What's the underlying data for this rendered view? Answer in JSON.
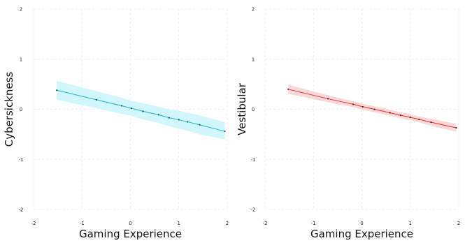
{
  "chart_data": [
    {
      "type": "line",
      "xlabel": "Gaming Experience",
      "ylabel": "Cybersickness",
      "xlim": [
        -2,
        2
      ],
      "ylim": [
        -2,
        2
      ],
      "xticks": [
        "-2",
        "-1",
        "0",
        "1",
        "2"
      ],
      "yticks": [
        "2",
        "1",
        "0",
        "-1",
        "-2"
      ],
      "grid": true,
      "line_color": "#1ab3c8",
      "band_color": "#c9f4fb",
      "point_color": "#1e4f56",
      "series": [
        {
          "x": [
            -1.52,
            -0.7,
            -0.18,
            0.02,
            0.26,
            0.58,
            0.8,
            1.0,
            1.18,
            1.43,
            1.95
          ],
          "y": [
            0.38,
            0.19,
            0.07,
            0.02,
            -0.04,
            -0.11,
            -0.17,
            -0.21,
            -0.25,
            -0.31,
            -0.44
          ],
          "band_upper": [
            0.57,
            0.36,
            0.23,
            0.17,
            0.12,
            0.05,
            0.0,
            -0.03,
            -0.07,
            -0.12,
            -0.26
          ],
          "band_lower": [
            0.19,
            0.02,
            -0.09,
            -0.13,
            -0.2,
            -0.27,
            -0.34,
            -0.39,
            -0.43,
            -0.5,
            -0.6
          ]
        }
      ]
    },
    {
      "type": "line",
      "xlabel": "Gaming Experience",
      "ylabel": "Vestibular",
      "xlim": [
        -2,
        2
      ],
      "ylim": [
        -2,
        2
      ],
      "xticks": [
        "-2",
        "-1",
        "0",
        "1",
        "2"
      ],
      "yticks": [
        "2",
        "1",
        "0",
        "-1",
        "-2"
      ],
      "grid": true,
      "line_color": "#e0302f",
      "band_color": "#fbd2d2",
      "point_color": "#5c1414",
      "series": [
        {
          "x": [
            -1.52,
            -0.7,
            -0.18,
            0.02,
            0.26,
            0.58,
            0.8,
            1.0,
            1.18,
            1.43,
            1.95
          ],
          "y": [
            0.4,
            0.21,
            0.1,
            0.05,
            0.0,
            -0.07,
            -0.12,
            -0.16,
            -0.2,
            -0.26,
            -0.37
          ],
          "band_upper": [
            0.49,
            0.28,
            0.16,
            0.11,
            0.06,
            -0.01,
            -0.06,
            -0.1,
            -0.14,
            -0.19,
            -0.29
          ],
          "band_lower": [
            0.31,
            0.14,
            0.04,
            -0.01,
            -0.06,
            -0.13,
            -0.18,
            -0.22,
            -0.26,
            -0.33,
            -0.45
          ]
        }
      ]
    }
  ]
}
